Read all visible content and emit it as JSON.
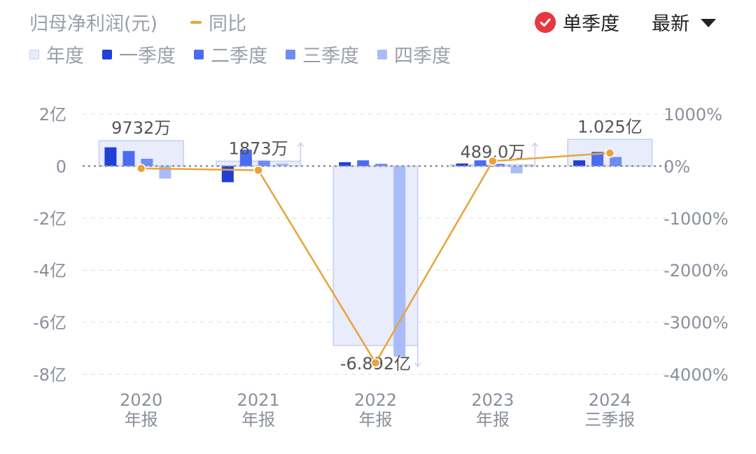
{
  "header": {
    "title": "归母净利润(元)",
    "yoy_label": "同比",
    "quarter_toggle_label": "单季度",
    "latest_label": "最新"
  },
  "legend": [
    {
      "label": "年度",
      "kind": "annual"
    },
    {
      "label": "一季度",
      "kind": "q1"
    },
    {
      "label": "二季度",
      "kind": "q2"
    },
    {
      "label": "三季度",
      "kind": "q3"
    },
    {
      "label": "四季度",
      "kind": "q4"
    }
  ],
  "colors": {
    "annual_fill": "#e8ecfb",
    "annual_stroke": "#c5cdf2",
    "q1": "#1f3fd6",
    "q2": "#4a6cf2",
    "q3": "#6f8cf5",
    "q4": "#a9bcf9",
    "yoy_line": "#e9a43b",
    "check_red": "#e8373e",
    "grid": "#e6e8ec",
    "zero_line": "#8c9098"
  },
  "chart_data": {
    "type": "bar",
    "title": "归母净利润(元)",
    "categories": [
      {
        "year": "2020",
        "period": "年报"
      },
      {
        "year": "2021",
        "period": "年报"
      },
      {
        "year": "2022",
        "period": "年报"
      },
      {
        "year": "2023",
        "period": "年报"
      },
      {
        "year": "2024",
        "period": "三季报"
      }
    ],
    "annual_values_yi": [
      0.9732,
      0.1873,
      -6.892,
      0.0489,
      1.025
    ],
    "annual_labels": [
      "9732万",
      "1873万",
      "-6.892亿",
      "489.0万",
      "1.025亿"
    ],
    "quarter_series": [
      {
        "name": "一季度",
        "values_yi": [
          0.72,
          -0.62,
          0.15,
          0.1,
          0.22
        ]
      },
      {
        "name": "二季度",
        "values_yi": [
          0.58,
          0.63,
          0.22,
          0.22,
          0.55
        ]
      },
      {
        "name": "三季度",
        "values_yi": [
          0.28,
          0.21,
          0.09,
          0.09,
          0.35
        ]
      },
      {
        "name": "四季度",
        "values_yi": [
          -0.48,
          0.1,
          -7.32,
          -0.28,
          null
        ]
      }
    ],
    "yoy_percent": [
      -45,
      -80,
      -3780,
      95,
      250
    ],
    "left_axis": {
      "ticks": [
        2,
        0,
        -2,
        -4,
        -6,
        -8
      ],
      "tick_labels": [
        "2亿",
        "0",
        "-2亿",
        "-4亿",
        "-6亿",
        "-8亿"
      ],
      "ylim": [
        -8,
        2
      ]
    },
    "right_axis": {
      "ticks": [
        1000,
        0,
        -1000,
        -2000,
        -3000,
        -4000
      ],
      "tick_labels": [
        "1000%",
        "0%",
        "-1000%",
        "-2000%",
        "-3000%",
        "-4000%"
      ],
      "ylim": [
        -4000,
        1000
      ]
    }
  }
}
